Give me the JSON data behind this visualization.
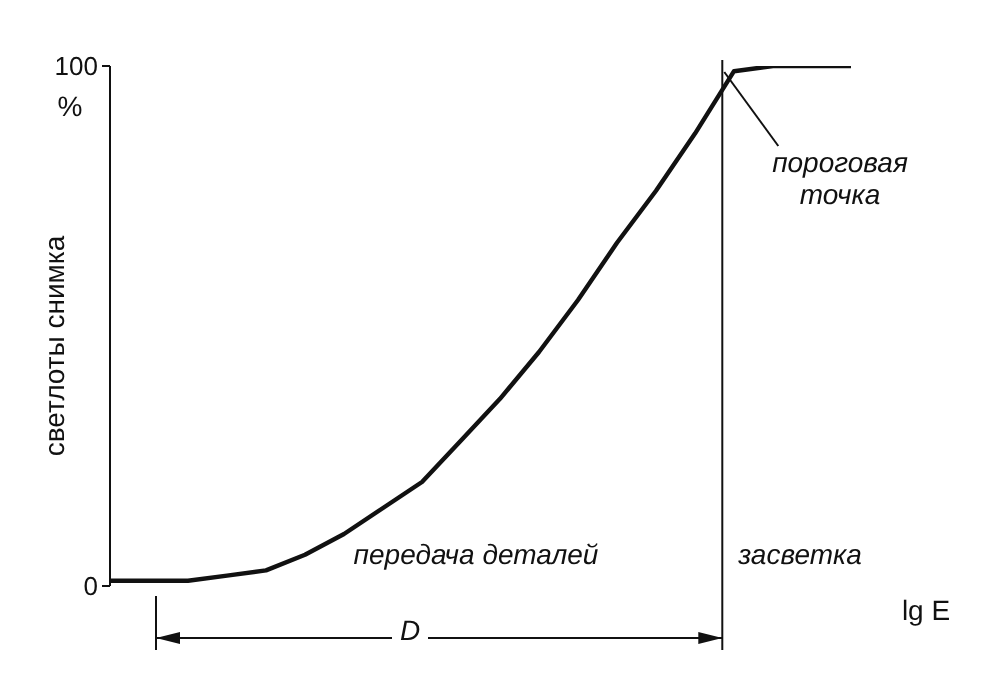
{
  "chart_data": {
    "type": "line",
    "ylabel": "светлоты снимка",
    "xlabel": "lg E",
    "ylim": [
      0,
      100
    ],
    "yticks": [
      0,
      100
    ],
    "tick_labels": "y",
    "marker": "none",
    "line_style": "solid",
    "categories": [
      null,
      null,
      null,
      null,
      null,
      null,
      null,
      null,
      null,
      null,
      null,
      null,
      null,
      null,
      null,
      null,
      null,
      null,
      null,
      null,
      null
    ],
    "series": [
      {
        "color": "#111111",
        "values": [
          1,
          1,
          1,
          2,
          3,
          6,
          10,
          15,
          20,
          28,
          36,
          45,
          55,
          66,
          76,
          87,
          99,
          100,
          100,
          100,
          null
        ]
      }
    ],
    "annotations": [
      "%",
      "пороговая точка",
      "передача деталей",
      "засветка",
      "D"
    ]
  }
}
